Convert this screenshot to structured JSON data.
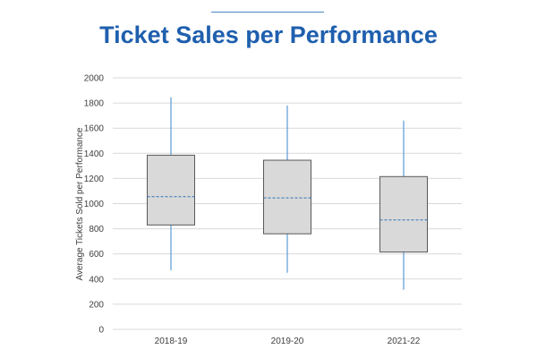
{
  "chart_data": {
    "type": "box",
    "title": "Ticket Sales per Performance",
    "xlabel": "",
    "ylabel": "Average Tickets Sold per Performance",
    "ylim": [
      0,
      2000
    ],
    "yticks": [
      0,
      200,
      400,
      600,
      800,
      1000,
      1200,
      1400,
      1600,
      1800,
      2000
    ],
    "grid": true,
    "categories": [
      "2018-19",
      "2019-20",
      "2021-22"
    ],
    "boxes": [
      {
        "category": "2018-19",
        "min": 470,
        "q1": 830,
        "median": 1055,
        "q3": 1385,
        "max": 1845
      },
      {
        "category": "2019-20",
        "min": 450,
        "q1": 760,
        "median": 1045,
        "q3": 1345,
        "max": 1780
      },
      {
        "category": "2021-22",
        "min": 315,
        "q1": 615,
        "median": 870,
        "q3": 1215,
        "max": 1660
      }
    ],
    "colors": {
      "box_fill": "#d9d9d9",
      "box_stroke": "#595959",
      "whisker": "#5b9bd5",
      "median": "#2e75b6",
      "grid": "#d9d9d9",
      "title": "#1f5fae"
    }
  }
}
